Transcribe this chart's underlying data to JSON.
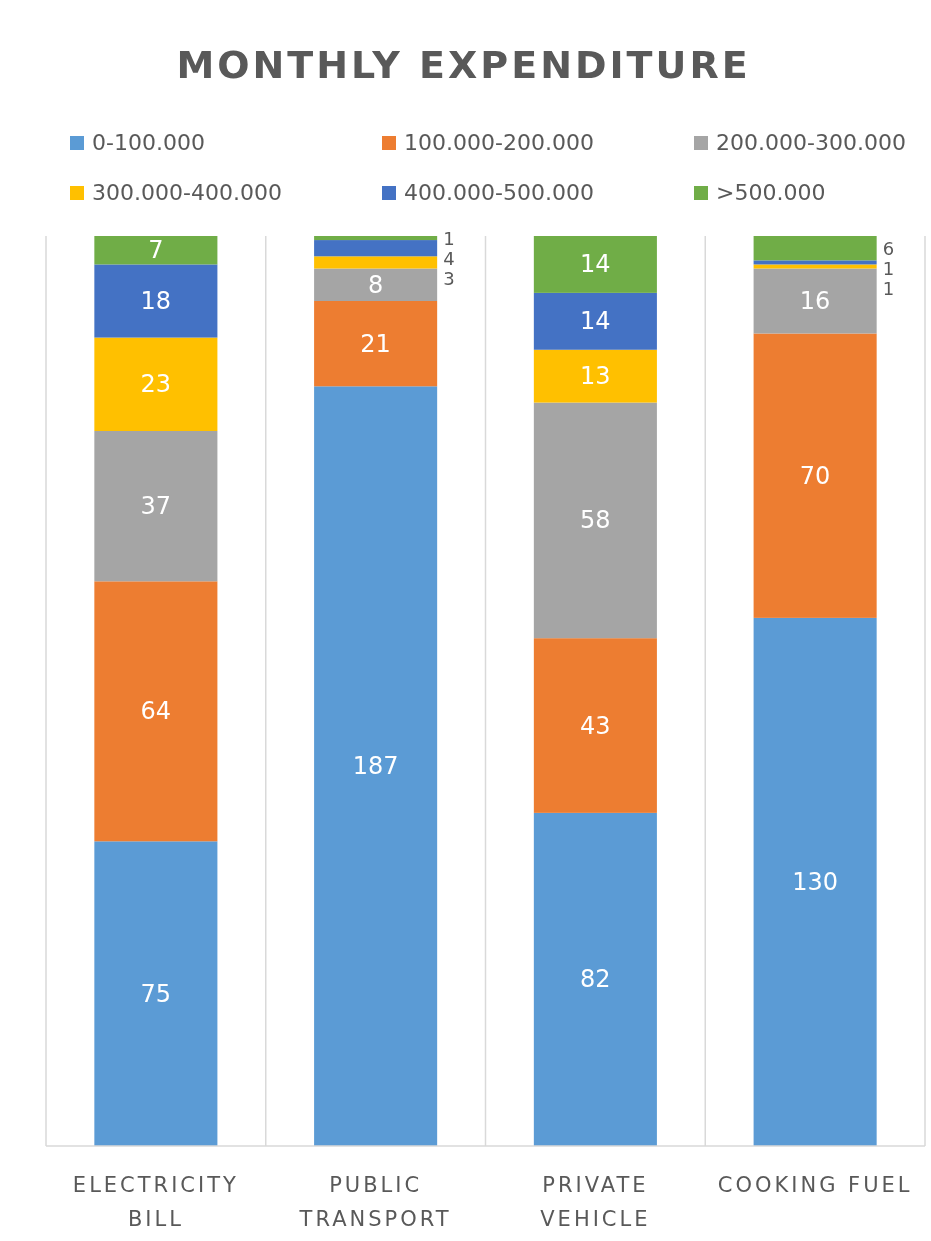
{
  "chart_data": {
    "type": "bar",
    "title": "MONTHLY EXPENDITURE",
    "categories": [
      "ELECTRICITY BILL",
      "PUBLIC TRANSPORT",
      "PRIVATE VEHICLE",
      "COOKING FUEL"
    ],
    "stacked": true,
    "data_labels": true,
    "ylim": [
      0,
      224
    ],
    "tick_labels": "x",
    "grid": "x",
    "legend": "top",
    "series": [
      {
        "name": "0-100.000",
        "color": "#5b9bd5",
        "values": [
          75,
          187,
          82,
          130
        ]
      },
      {
        "name": "100.000-200.000",
        "color": "#ed7d31",
        "values": [
          64,
          21,
          43,
          70
        ]
      },
      {
        "name": "200.000-300.000",
        "color": "#a5a5a5",
        "values": [
          37,
          8,
          58,
          16
        ]
      },
      {
        "name": "300.000-400.000",
        "color": "#ffc000",
        "values": [
          23,
          3,
          13,
          1
        ]
      },
      {
        "name": "400.000-500.000",
        "color": "#4472c4",
        "values": [
          18,
          4,
          14,
          1
        ]
      },
      {
        "name": ">500.000",
        "color": "#70ad47",
        "values": [
          7,
          1,
          14,
          6
        ]
      }
    ]
  }
}
